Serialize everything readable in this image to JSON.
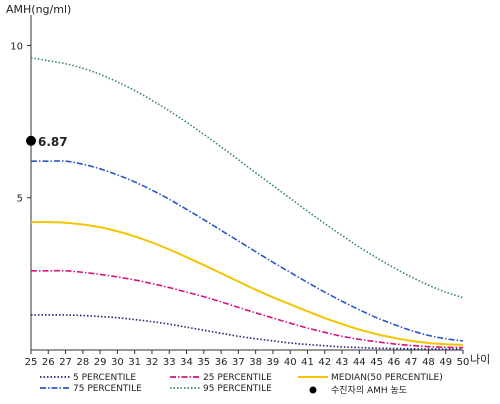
{
  "chart_data": {
    "type": "line",
    "ylabel": "AMH(ng/ml)",
    "xlabel": "나이",
    "x": [
      25,
      26,
      27,
      28,
      29,
      30,
      31,
      32,
      33,
      34,
      35,
      36,
      37,
      38,
      39,
      40,
      41,
      42,
      43,
      44,
      45,
      46,
      47,
      48,
      49,
      50
    ],
    "xlim": [
      25,
      50
    ],
    "ylim": [
      0,
      11
    ],
    "yticks": [
      5,
      10
    ],
    "grid": false,
    "legend_position": "bottom",
    "series": [
      {
        "name": "5 PERCENTILE",
        "color": "#1f1f7a",
        "style": "dotted",
        "values": [
          1.15,
          1.15,
          1.15,
          1.13,
          1.1,
          1.06,
          1.0,
          0.93,
          0.85,
          0.75,
          0.65,
          0.55,
          0.45,
          0.37,
          0.3,
          0.23,
          0.18,
          0.14,
          0.1,
          0.08,
          0.06,
          0.05,
          0.04,
          0.03,
          0.03,
          0.03
        ]
      },
      {
        "name": "25 PERCENTILE",
        "color": "#d6147f",
        "style": "dashdot",
        "values": [
          2.6,
          2.6,
          2.6,
          2.55,
          2.48,
          2.4,
          2.3,
          2.18,
          2.05,
          1.9,
          1.75,
          1.58,
          1.4,
          1.22,
          1.05,
          0.88,
          0.72,
          0.58,
          0.45,
          0.35,
          0.27,
          0.2,
          0.15,
          0.11,
          0.09,
          0.08
        ]
      },
      {
        "name": "MEDIAN(50 PERCENTILE)",
        "color": "#f2c500",
        "style": "solid",
        "values": [
          4.2,
          4.2,
          4.18,
          4.12,
          4.03,
          3.9,
          3.73,
          3.53,
          3.3,
          3.05,
          2.79,
          2.52,
          2.25,
          1.98,
          1.73,
          1.5,
          1.27,
          1.05,
          0.85,
          0.67,
          0.52,
          0.4,
          0.3,
          0.23,
          0.19,
          0.17
        ]
      },
      {
        "name": "75 PERCENTILE",
        "color": "#2b55c9",
        "style": "dashdot",
        "values": [
          6.2,
          6.2,
          6.2,
          6.1,
          5.95,
          5.75,
          5.52,
          5.25,
          4.95,
          4.62,
          4.28,
          3.93,
          3.58,
          3.23,
          2.88,
          2.55,
          2.22,
          1.9,
          1.6,
          1.32,
          1.06,
          0.84,
          0.64,
          0.48,
          0.37,
          0.3
        ]
      },
      {
        "name": "95 PERCENTILE",
        "color": "#2e8b57",
        "style": "dotted",
        "values": [
          9.6,
          9.5,
          9.4,
          9.25,
          9.05,
          8.8,
          8.52,
          8.2,
          7.85,
          7.48,
          7.08,
          6.67,
          6.25,
          5.82,
          5.4,
          4.98,
          4.56,
          4.15,
          3.76,
          3.38,
          3.03,
          2.7,
          2.4,
          2.13,
          1.9,
          1.72
        ]
      }
    ],
    "marker": {
      "name": "수진자의 AMH 농도",
      "x": 25,
      "value": 6.87,
      "label": "6.87",
      "color": "#000000"
    }
  }
}
